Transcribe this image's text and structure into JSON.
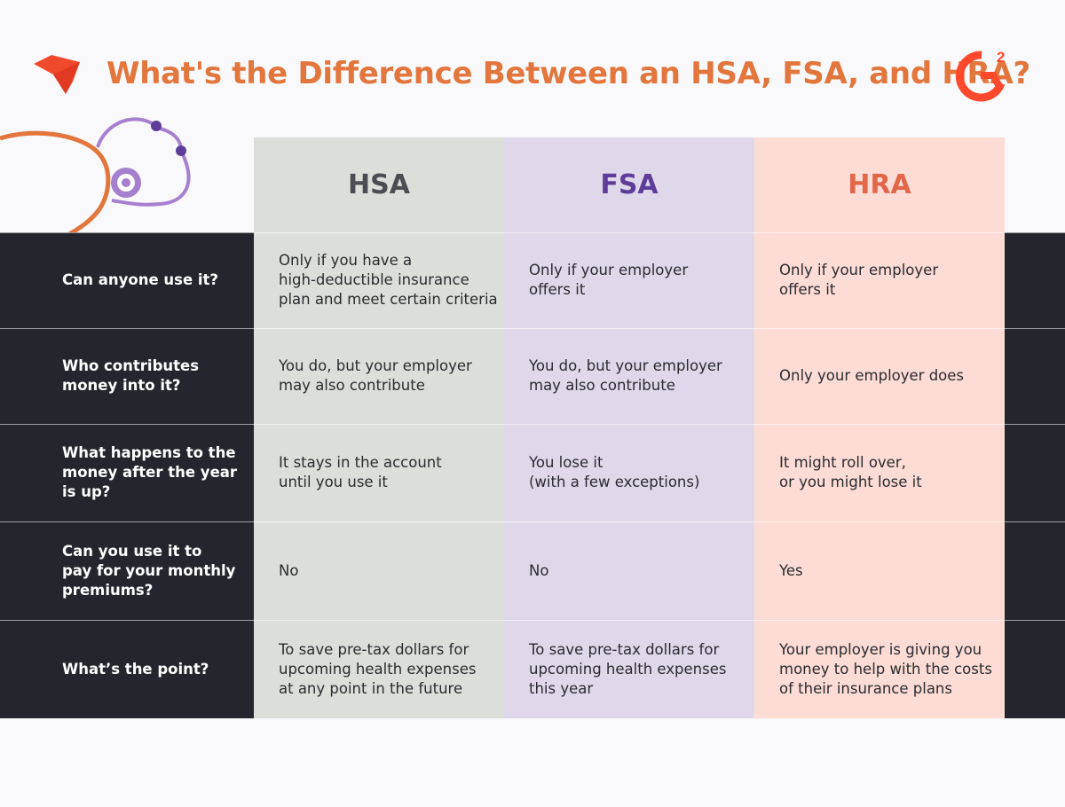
{
  "header": {
    "title": "What's the Difference Between an HSA, FSA, and HRA?"
  },
  "colors": {
    "title": "#e2763c",
    "dark": "#25262d",
    "hsa_bg": "#dcdfd9",
    "fsa_bg": "#dfd8ea",
    "hra_bg": "#fcdcd4",
    "hsa_text": "#4b4d52",
    "fsa_text": "#5e3d9a",
    "hra_text": "#e2674a",
    "g2": "#ff492c"
  },
  "icons": {
    "left_logo": "red-geometric-logo-icon",
    "right_logo": "g2-logo-icon",
    "decoration": "stethoscope-icon"
  },
  "table": {
    "columns": [
      "HSA",
      "FSA",
      "HRA"
    ],
    "rows": [
      {
        "question": "Can anyone use it?",
        "hsa": "Only if you have a\nhigh-deductible insurance\nplan and meet certain criteria",
        "fsa": "Only if your employer\noffers it",
        "hra": "Only if your employer\noffers it"
      },
      {
        "question": "Who contributes\nmoney into it?",
        "hsa": "You do, but your employer\nmay also contribute",
        "fsa": "You do, but your employer\nmay also contribute",
        "hra": "Only your employer does"
      },
      {
        "question": "What happens to the\nmoney after the year\nis up?",
        "hsa": "It stays in the account\nuntil you use it",
        "fsa": "You lose it\n(with a few exceptions)",
        "hra": "It might roll over,\nor you might lose it"
      },
      {
        "question": "Can you use it to\npay for your monthly\npremiums?",
        "hsa": "No",
        "fsa": "No",
        "hra": "Yes"
      },
      {
        "question": "What’s the point?",
        "hsa": "To save pre-tax dollars for\nupcoming health expenses\nat any point in the future",
        "fsa": "To save pre-tax dollars for\nupcoming health expenses\nthis year",
        "hra": "Your employer is giving you\nmoney to help with the costs\nof their insurance plans"
      }
    ]
  }
}
